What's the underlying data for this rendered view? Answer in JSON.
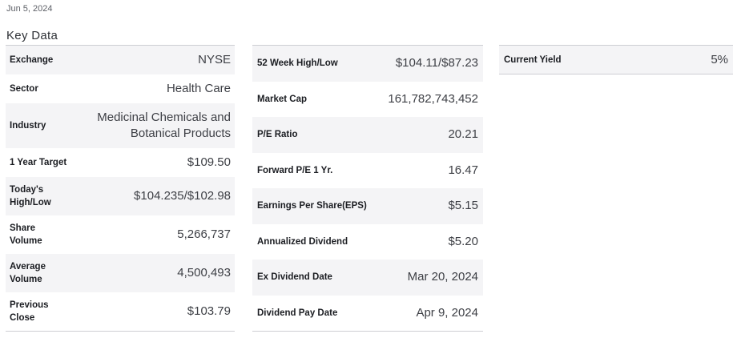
{
  "header": {
    "date": "Jun 5, 2024",
    "title": "Key Data"
  },
  "colors": {
    "row_shade": "#f4f4f6",
    "border": "#cdced3",
    "label_text": "#1b1d22",
    "value_text": "#3d3f45",
    "muted_text": "#5d6067"
  },
  "tables": [
    {
      "name": "key-data-left",
      "rows": [
        {
          "label": "Exchange",
          "value": "NYSE"
        },
        {
          "label": "Sector",
          "value": "Health Care"
        },
        {
          "label": "Industry",
          "value": "Medicinal Chemicals and\nBotanical Products"
        },
        {
          "label": "1 Year Target",
          "value": "$109.50"
        },
        {
          "label": "Today's\nHigh/Low",
          "value": "$104.235/$102.98"
        },
        {
          "label": "Share\nVolume",
          "value": "5,266,737"
        },
        {
          "label": "Average\nVolume",
          "value": "4,500,493"
        },
        {
          "label": "Previous\nClose",
          "value": "$103.79"
        }
      ]
    },
    {
      "name": "key-data-middle",
      "rows": [
        {
          "label": "52 Week High/Low",
          "value": "$104.11/$87.23"
        },
        {
          "label": "Market Cap",
          "value": "161,782,743,452"
        },
        {
          "label": "P/E Ratio",
          "value": "20.21"
        },
        {
          "label": "Forward P/E 1 Yr.",
          "value": "16.47"
        },
        {
          "label": "Earnings Per Share(EPS)",
          "value": "$5.15"
        },
        {
          "label": "Annualized Dividend",
          "value": "$5.20"
        },
        {
          "label": "Ex Dividend Date",
          "value": "Mar 20, 2024"
        },
        {
          "label": "Dividend Pay Date",
          "value": "Apr 9, 2024"
        }
      ]
    },
    {
      "name": "key-data-right",
      "rows": [
        {
          "label": "Current Yield",
          "value": "5%"
        }
      ]
    }
  ]
}
